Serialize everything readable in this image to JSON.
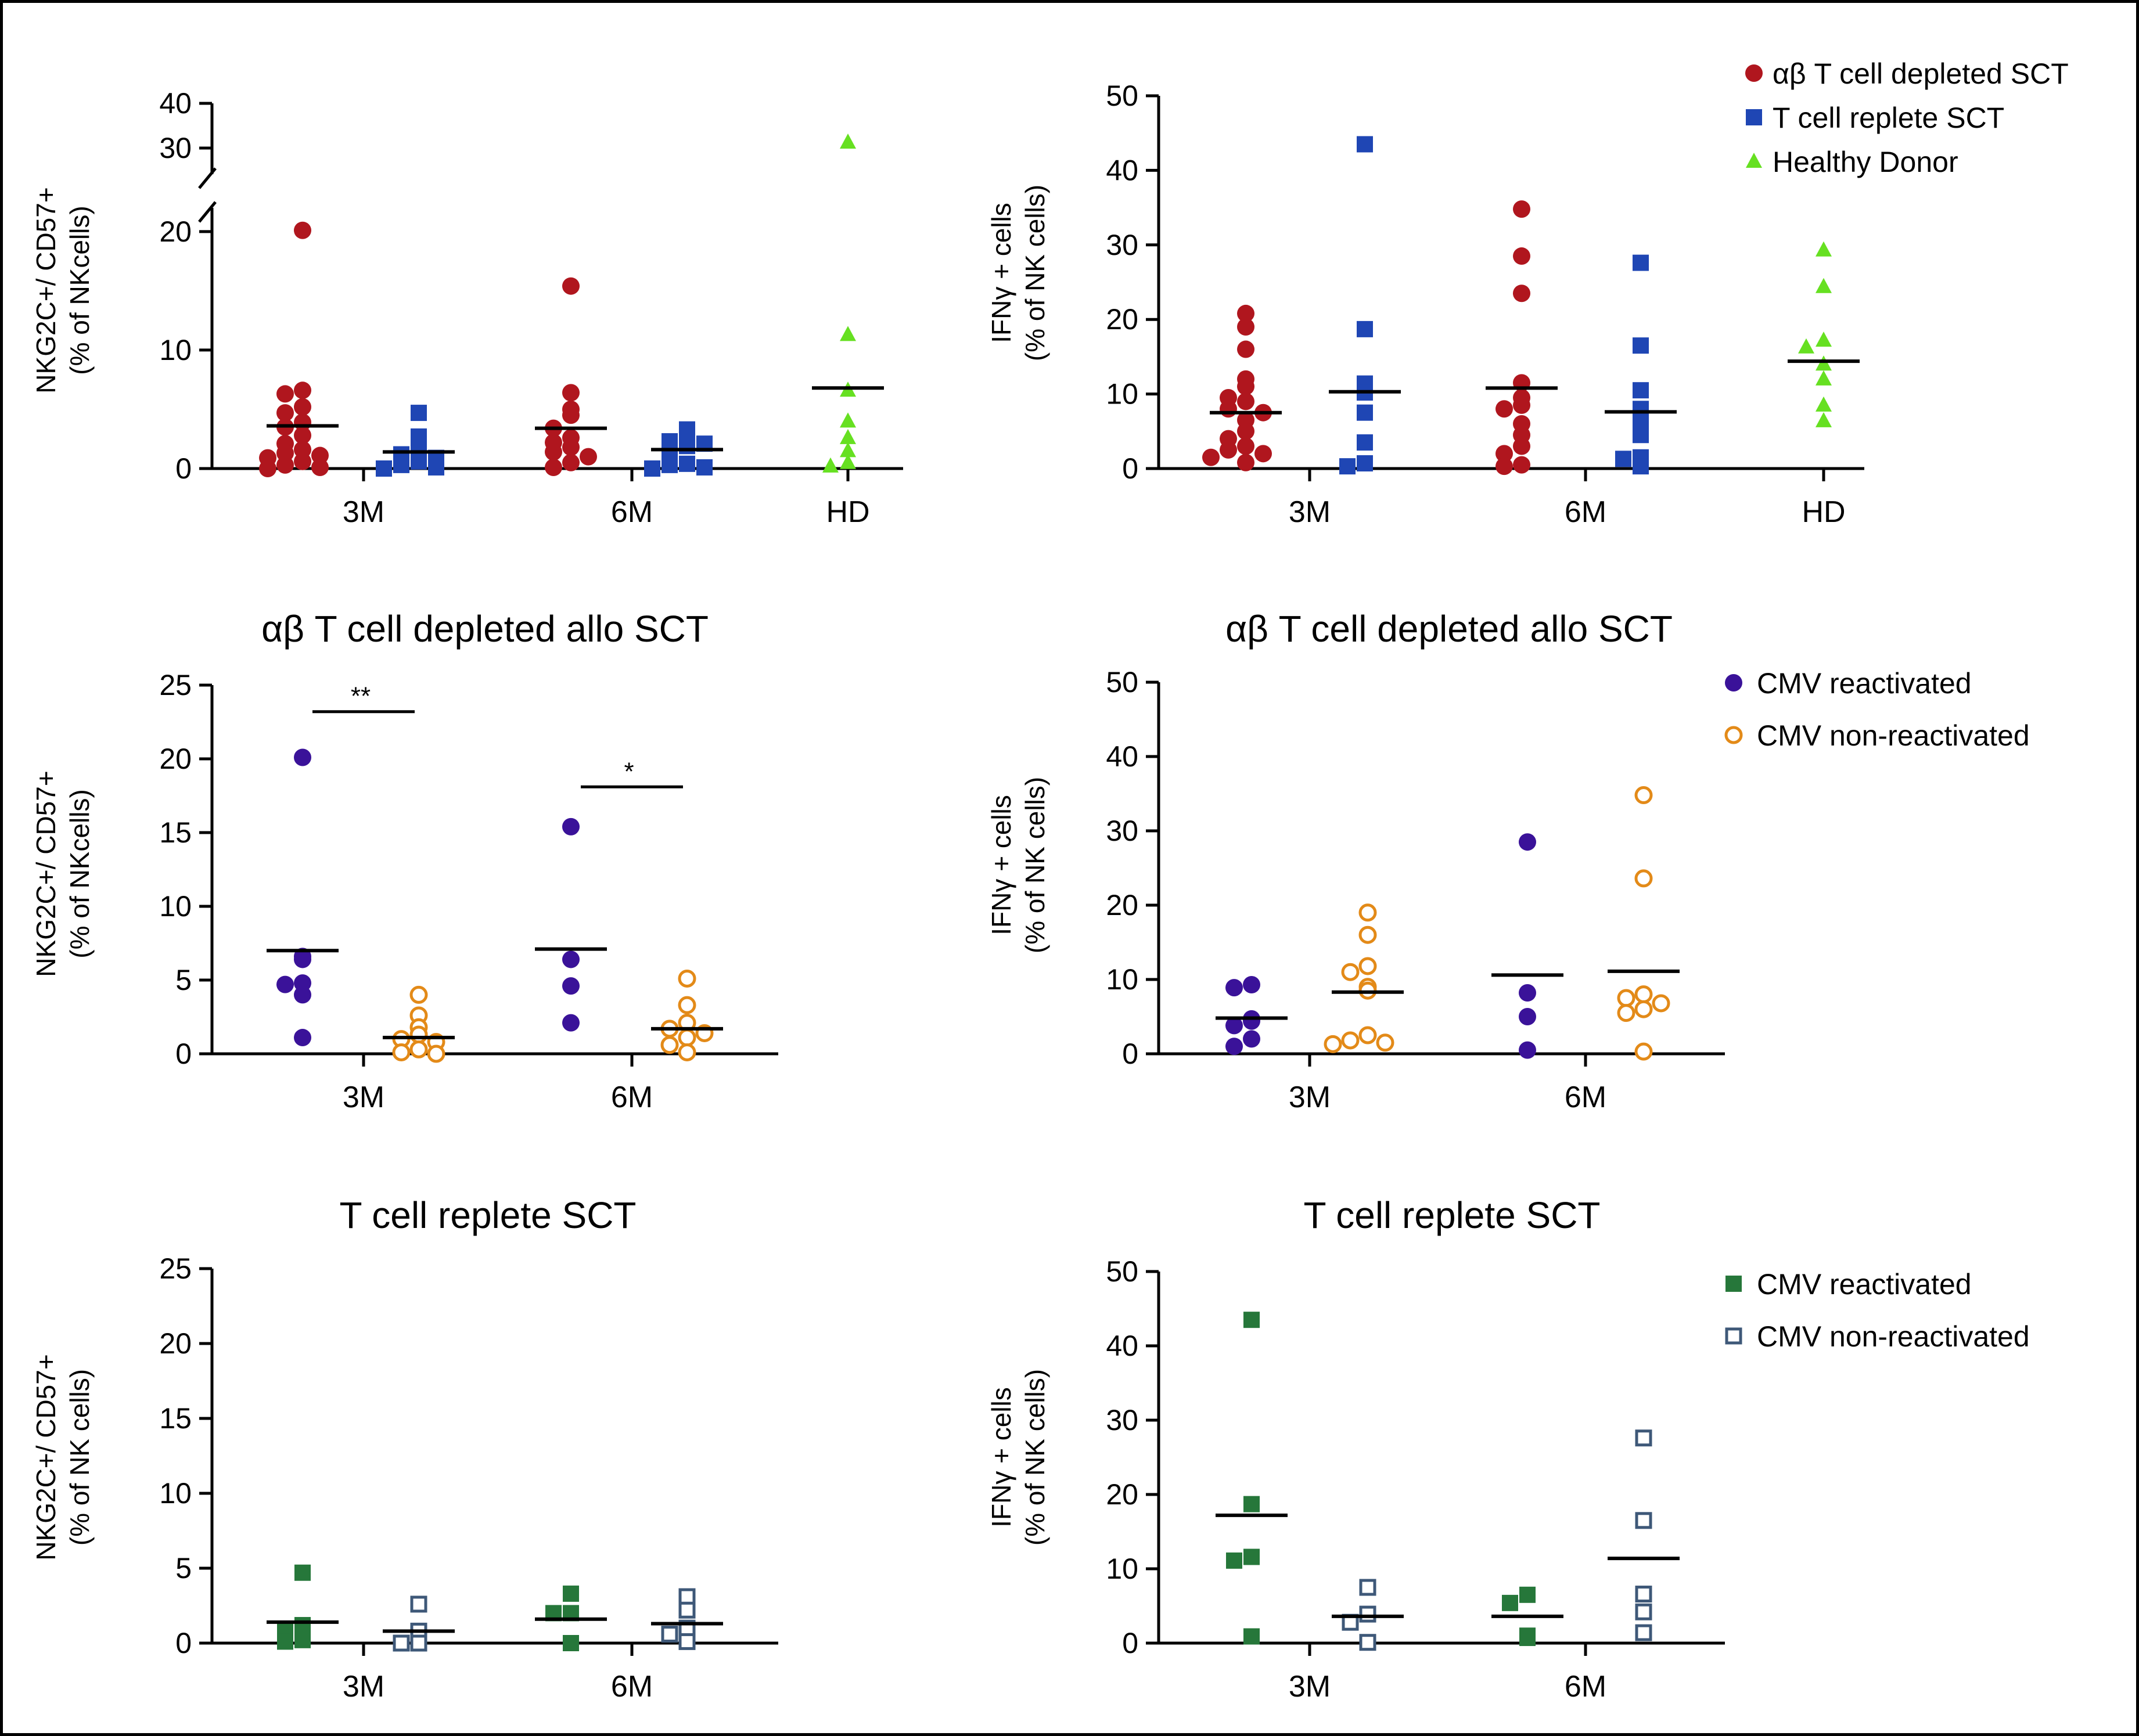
{
  "chart_data": [
    {
      "type": "scatter",
      "title": "",
      "ylabel": [
        "NKG2C+/ CD57+",
        "(% of NKcells)"
      ],
      "categories": [
        "3M",
        "6M",
        "HD"
      ],
      "ylim": [
        0,
        40
      ],
      "y_axis_break": [
        22,
        28
      ],
      "yticks": [
        0,
        10,
        20,
        30,
        40
      ],
      "legend": "none",
      "series": [
        {
          "name": "αβ T cell depleted SCT",
          "color": "#B0161E",
          "marker": "circle",
          "groups": [
            {
              "x": "3M",
              "values": [
                20.1,
                6.6,
                6.3,
                5.2,
                4.7,
                3.9,
                3.5,
                2.8,
                2.1,
                1.6,
                1.3,
                1.1,
                0.9,
                0.6,
                0.3,
                0.1,
                0.0
              ],
              "median": 3.6
            },
            {
              "x": "6M",
              "values": [
                15.4,
                6.4,
                5.0,
                4.5,
                3.4,
                2.6,
                2.2,
                1.8,
                1.4,
                1.0,
                0.5,
                0.1
              ],
              "median": 3.4
            }
          ]
        },
        {
          "name": "T cell replete SCT",
          "color": "#1F46B4",
          "marker": "square",
          "groups": [
            {
              "x": "3M",
              "values": [
                4.7,
                2.7,
                1.9,
                1.2,
                0.9,
                0.6,
                0.3,
                0.1,
                0.0
              ],
              "median": 1.4
            },
            {
              "x": "6M",
              "values": [
                3.3,
                3.1,
                2.3,
                2.1,
                1.9,
                0.8,
                0.4,
                0.3,
                0.1,
                0.0
              ],
              "median": 1.6
            }
          ]
        },
        {
          "name": "Healthy Donor",
          "color": "#66E021",
          "marker": "triangle",
          "groups": [
            {
              "x": "HD",
              "values": [
                31.3,
                11.3,
                6.6,
                4.0,
                2.6,
                1.5,
                0.5,
                0.2
              ],
              "median": 6.8
            }
          ]
        }
      ]
    },
    {
      "type": "scatter",
      "title": "",
      "ylabel": [
        "IFNγ + cells",
        "(% of NK cells)"
      ],
      "categories": [
        "3M",
        "6M",
        "HD"
      ],
      "ylim": [
        0,
        50
      ],
      "yticks": [
        0,
        10,
        20,
        30,
        40,
        50
      ],
      "legend": "top-right",
      "legend_entries": [
        "αβ T cell depleted SCT",
        "T cell replete SCT",
        "Healthy Donor"
      ],
      "series": [
        {
          "name": "αβ T cell depleted SCT",
          "color": "#B0161E",
          "marker": "circle",
          "groups": [
            {
              "x": "3M",
              "values": [
                20.8,
                19.0,
                16.0,
                12.0,
                11.0,
                9.5,
                9.0,
                8.0,
                7.5,
                6.5,
                5.0,
                4.0,
                3.0,
                2.5,
                2.0,
                1.5,
                0.8
              ],
              "median": 7.5
            },
            {
              "x": "6M",
              "values": [
                34.8,
                28.5,
                23.5,
                11.5,
                9.5,
                8.5,
                8.0,
                6.0,
                4.5,
                3.0,
                2.0,
                0.5,
                0.3
              ],
              "median": 10.8
            }
          ]
        },
        {
          "name": "T cell replete SCT",
          "color": "#1F46B4",
          "marker": "square",
          "groups": [
            {
              "x": "3M",
              "values": [
                43.5,
                18.7,
                11.4,
                10.2,
                7.5,
                3.5,
                0.7,
                0.3
              ],
              "median": 10.3
            },
            {
              "x": "6M",
              "values": [
                27.6,
                16.5,
                10.5,
                8.0,
                6.6,
                4.5,
                1.5,
                1.3,
                0.3
              ],
              "median": 7.6
            }
          ]
        },
        {
          "name": "Healthy Donor",
          "color": "#66E021",
          "marker": "triangle",
          "groups": [
            {
              "x": "HD",
              "values": [
                29.3,
                24.4,
                17.2,
                16.3,
                14.0,
                12.0,
                8.5,
                6.4
              ],
              "median": 14.4
            }
          ]
        }
      ]
    },
    {
      "type": "scatter",
      "title": "αβ T cell depleted allo SCT",
      "ylabel": [
        "NKG2C+/ CD57+",
        "(% of NKcells)"
      ],
      "categories": [
        "3M",
        "6M"
      ],
      "ylim": [
        0,
        25
      ],
      "yticks": [
        0,
        5,
        10,
        15,
        20,
        25
      ],
      "legend": "none",
      "significance": [
        {
          "between": "3M",
          "label": "**",
          "y": 23.2
        },
        {
          "between": "6M",
          "label": "*",
          "y": 18.1
        }
      ],
      "series": [
        {
          "name": "CMV reactivated",
          "color": "#3A1299",
          "marker": "circle",
          "groups": [
            {
              "x": "3M",
              "values": [
                20.1,
                6.6,
                6.4,
                4.8,
                4.7,
                4.0,
                1.1
              ],
              "median": 7.0
            },
            {
              "x": "6M",
              "values": [
                15.4,
                6.4,
                4.6,
                2.1
              ],
              "median": 7.1
            }
          ]
        },
        {
          "name": "CMV non-reactivated",
          "color": "#E38A18",
          "marker": "circle-open",
          "groups": [
            {
              "x": "3M",
              "values": [
                4.0,
                2.6,
                1.8,
                1.3,
                1.0,
                0.8,
                0.3,
                0.1,
                0.0
              ],
              "median": 1.1
            },
            {
              "x": "6M",
              "values": [
                5.1,
                3.3,
                2.1,
                1.7,
                1.4,
                1.1,
                0.6,
                0.1
              ],
              "median": 1.7
            }
          ]
        }
      ]
    },
    {
      "type": "scatter",
      "title": "αβ T cell depleted allo SCT",
      "ylabel": [
        "IFNγ + cells",
        "(% of NK cells)"
      ],
      "categories": [
        "3M",
        "6M"
      ],
      "ylim": [
        0,
        50
      ],
      "yticks": [
        0,
        10,
        20,
        30,
        40,
        50
      ],
      "legend": "top-right",
      "legend_entries": [
        "CMV reactivated",
        "CMV non-reactivated"
      ],
      "series": [
        {
          "name": "CMV reactivated",
          "color": "#3A1299",
          "marker": "circle",
          "groups": [
            {
              "x": "3M",
              "values": [
                9.3,
                8.9,
                4.7,
                4.4,
                3.8,
                2.0,
                1.0
              ],
              "median": 4.8
            },
            {
              "x": "6M",
              "values": [
                28.5,
                8.2,
                5.0,
                0.5
              ],
              "median": 10.6
            }
          ]
        },
        {
          "name": "CMV non-reactivated",
          "color": "#E38A18",
          "marker": "circle-open",
          "groups": [
            {
              "x": "3M",
              "values": [
                19.0,
                16.0,
                11.8,
                11.0,
                9.0,
                8.5,
                2.5,
                1.8,
                1.5,
                1.3
              ],
              "median": 8.3
            },
            {
              "x": "6M",
              "values": [
                34.8,
                23.6,
                8.0,
                7.5,
                6.8,
                6.0,
                5.5,
                0.3
              ],
              "median": 11.1
            }
          ]
        }
      ]
    },
    {
      "type": "scatter",
      "title": "T cell replete SCT",
      "ylabel": [
        "NKG2C+/ CD57+",
        "(% of NK cells)"
      ],
      "categories": [
        "3M",
        "6M"
      ],
      "ylim": [
        0,
        25
      ],
      "yticks": [
        0,
        5,
        10,
        15,
        20,
        25
      ],
      "legend": "none",
      "series": [
        {
          "name": "CMV reactivated",
          "color": "#26773A",
          "marker": "square",
          "groups": [
            {
              "x": "3M",
              "values": [
                4.7,
                1.2,
                0.9,
                0.2,
                0.1
              ],
              "median": 1.4
            },
            {
              "x": "6M",
              "values": [
                3.3,
                2.0,
                2.0,
                0.0
              ],
              "median": 1.6
            }
          ]
        },
        {
          "name": "CMV non-reactivated",
          "color": "#3E5878",
          "marker": "square-open",
          "groups": [
            {
              "x": "3M",
              "values": [
                2.6,
                0.8,
                0.0,
                0.0
              ],
              "median": 0.8
            },
            {
              "x": "6M",
              "values": [
                3.1,
                2.2,
                1.0,
                0.6,
                0.1
              ],
              "median": 1.3
            }
          ]
        }
      ]
    },
    {
      "type": "scatter",
      "title": "T cell replete SCT",
      "ylabel": [
        "IFNγ + cells",
        "(% of NK cells)"
      ],
      "categories": [
        "3M",
        "6M"
      ],
      "ylim": [
        0,
        50
      ],
      "yticks": [
        0,
        10,
        20,
        30,
        40,
        50
      ],
      "legend": "top-right",
      "legend_entries": [
        "CMV reactivated",
        "CMV non-reactivated"
      ],
      "series": [
        {
          "name": "CMV reactivated",
          "color": "#26773A",
          "marker": "square",
          "groups": [
            {
              "x": "3M",
              "values": [
                43.5,
                18.7,
                11.6,
                11.1,
                0.9
              ],
              "median": 17.2
            },
            {
              "x": "6M",
              "values": [
                6.5,
                5.4,
                1.0,
                0.7
              ],
              "median": 3.6
            }
          ]
        },
        {
          "name": "CMV non-reactivated",
          "color": "#3E5878",
          "marker": "square-open",
          "groups": [
            {
              "x": "3M",
              "values": [
                7.5,
                3.9,
                2.8,
                0.1
              ],
              "median": 3.6
            },
            {
              "x": "6M",
              "values": [
                27.6,
                16.5,
                6.6,
                4.2,
                1.4
              ],
              "median": 11.4
            }
          ]
        }
      ]
    }
  ]
}
